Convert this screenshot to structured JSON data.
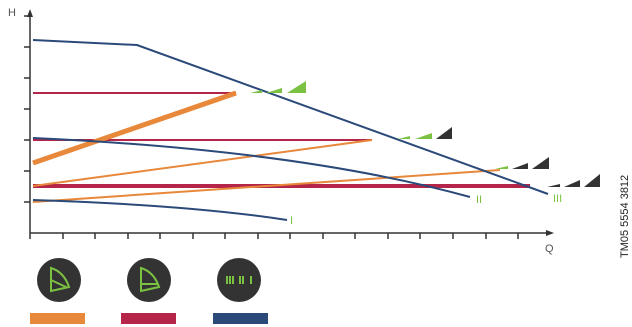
{
  "axes": {
    "y_label": "H",
    "x_label": "Q"
  },
  "curves": [
    {
      "label": "I"
    },
    {
      "label": "II"
    },
    {
      "label": "III"
    }
  ],
  "document_code": "TM05 5554 3812"
}
